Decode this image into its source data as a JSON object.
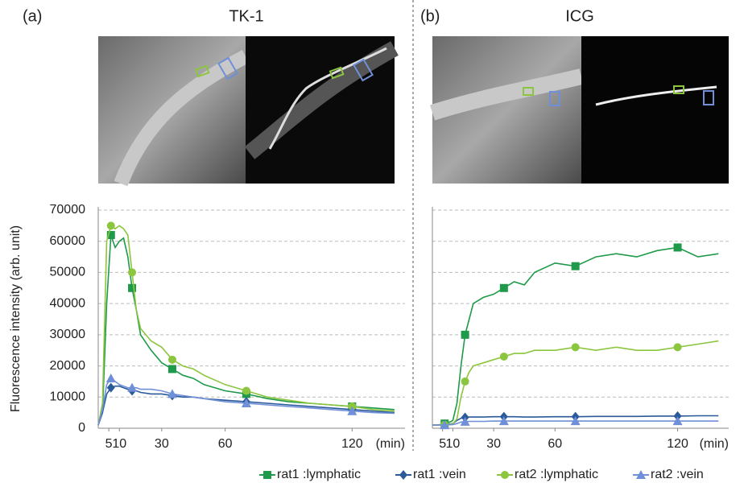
{
  "chart_data": [
    {
      "type": "line",
      "label": "(a)",
      "title": "TK-1",
      "ylabel": "Fluorescence intensity (arb. unit)",
      "xlabel": "(min)",
      "x": [
        0,
        2,
        4,
        6,
        8,
        10,
        12,
        14,
        16,
        18,
        20,
        25,
        30,
        35,
        40,
        45,
        50,
        60,
        70,
        80,
        90,
        100,
        110,
        120,
        130,
        140
      ],
      "xlim": [
        0,
        145
      ],
      "xticks": [
        5,
        10,
        30,
        60,
        120
      ],
      "ylim": [
        0,
        70000
      ],
      "yticks": [
        0,
        10000,
        20000,
        30000,
        40000,
        50000,
        60000,
        70000
      ],
      "grid": true,
      "legend": "bottom",
      "series": [
        {
          "name": "rat1 :lymphatic",
          "color": "#1e9a4a",
          "marker": "square",
          "values": [
            1000,
            5000,
            40000,
            62000,
            58000,
            60000,
            61000,
            55000,
            45000,
            38000,
            30000,
            25000,
            21000,
            19000,
            17000,
            16000,
            14000,
            12000,
            11000,
            9500,
            8500,
            8000,
            7500,
            7000,
            6500,
            6000
          ]
        },
        {
          "name": "rat1 :vein",
          "color": "#2a5a9a",
          "marker": "diamond",
          "values": [
            1000,
            5000,
            11000,
            13000,
            13500,
            13500,
            13000,
            12500,
            12000,
            12000,
            11500,
            11000,
            11000,
            10500,
            10000,
            10000,
            9500,
            9000,
            8500,
            8000,
            7500,
            7000,
            6500,
            6000,
            5500,
            5000
          ]
        },
        {
          "name": "rat2 :lymphatic",
          "color": "#8cc63f",
          "marker": "circle",
          "values": [
            1000,
            8000,
            60000,
            65000,
            64000,
            65000,
            64000,
            62000,
            50000,
            38000,
            32000,
            28000,
            26000,
            22000,
            20000,
            19000,
            17000,
            14000,
            12000,
            10000,
            9000,
            8000,
            7500,
            7000,
            6000,
            5500
          ]
        },
        {
          "name": "rat2 :vein",
          "color": "#6f8fd8",
          "marker": "triangle",
          "values": [
            1000,
            6000,
            14000,
            16000,
            15000,
            14000,
            13500,
            13000,
            13000,
            13000,
            12500,
            12500,
            12000,
            11000,
            10500,
            10000,
            9500,
            8500,
            8000,
            7500,
            7000,
            6500,
            6000,
            5500,
            5000,
            4800
          ]
        }
      ]
    },
    {
      "type": "line",
      "label": "(b)",
      "title": "ICG",
      "xlabel": "(min)",
      "x": [
        0,
        2,
        4,
        6,
        8,
        10,
        12,
        14,
        16,
        18,
        20,
        25,
        30,
        35,
        40,
        45,
        50,
        60,
        70,
        80,
        90,
        100,
        110,
        120,
        130,
        140
      ],
      "xlim": [
        0,
        145
      ],
      "xticks": [
        5,
        10,
        30,
        60,
        120
      ],
      "ylim": [
        0,
        70000
      ],
      "yticks": [
        0,
        10000,
        20000,
        30000,
        40000,
        50000,
        60000,
        70000
      ],
      "grid": true,
      "series": [
        {
          "color": "#1e9a4a",
          "marker": "square",
          "values": [
            1000,
            1000,
            1200,
            1500,
            1800,
            2500,
            8000,
            20000,
            30000,
            35000,
            40000,
            42000,
            43000,
            45000,
            47000,
            46000,
            50000,
            53000,
            52000,
            55000,
            56000,
            55000,
            57000,
            58000,
            55000,
            56000
          ]
        },
        {
          "color": "#2a5a9a",
          "marker": "diamond",
          "values": [
            1000,
            1000,
            1100,
            1200,
            1300,
            1500,
            2500,
            3200,
            3500,
            3600,
            3600,
            3600,
            3700,
            3700,
            3700,
            3600,
            3600,
            3700,
            3700,
            3800,
            3800,
            3800,
            3900,
            3900,
            4000,
            4000
          ]
        },
        {
          "color": "#8cc63f",
          "marker": "circle",
          "values": [
            1000,
            1000,
            1000,
            1100,
            1200,
            1400,
            3000,
            10000,
            15000,
            18000,
            20000,
            21000,
            22000,
            23000,
            24000,
            24000,
            25000,
            25000,
            26000,
            25000,
            26000,
            25000,
            25000,
            26000,
            27000,
            28000
          ]
        },
        {
          "color": "#6f8fd8",
          "marker": "triangle",
          "values": [
            1000,
            1000,
            1000,
            1000,
            1100,
            1200,
            1500,
            2000,
            2100,
            2200,
            2200,
            2200,
            2300,
            2300,
            2300,
            2300,
            2300,
            2300,
            2300,
            2300,
            2300,
            2300,
            2300,
            2300,
            2300,
            2300
          ]
        }
      ]
    }
  ]
}
